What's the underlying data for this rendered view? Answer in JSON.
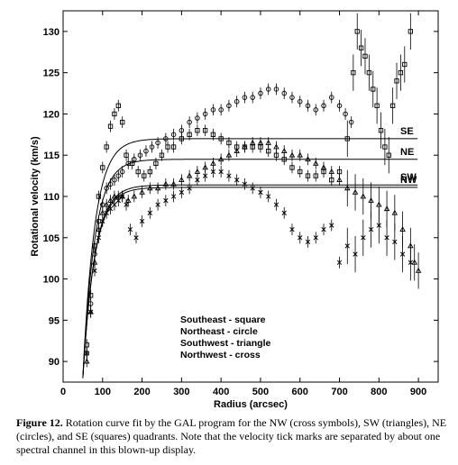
{
  "chart_data": {
    "type": "scatter",
    "xlabel": "Radius (arcsec)",
    "ylabel": "Rotational velocity (km/s)",
    "xlim": [
      0,
      950
    ],
    "ylim": [
      87.5,
      132.5
    ],
    "xticks": [
      0,
      100,
      200,
      300,
      400,
      500,
      600,
      700,
      800,
      900
    ],
    "yticks": [
      90,
      95,
      100,
      105,
      110,
      115,
      120,
      125,
      130
    ],
    "grid": false,
    "legend_position": "center-left",
    "legend_lines": [
      "Southeast - square",
      "Northeast - circle",
      "Southwest - triangle",
      "Northwest - cross"
    ],
    "fit_curves": [
      {
        "label": "SE",
        "vmax": 117.0
      },
      {
        "label": "NE",
        "vmax": 114.5
      },
      {
        "label": "SW",
        "vmax": 111.4
      },
      {
        "label": "NW",
        "vmax": 111.1
      }
    ],
    "series": [
      {
        "name": "Southeast - square",
        "marker": "square",
        "x": [
          60,
          70,
          80,
          90,
          100,
          110,
          120,
          130,
          140,
          150,
          160,
          175,
          190,
          205,
          220,
          235,
          250,
          265,
          280,
          300,
          320,
          340,
          360,
          380,
          400,
          420,
          440,
          460,
          480,
          500,
          520,
          540,
          560,
          580,
          600,
          620,
          640,
          660,
          680,
          700,
          720,
          735,
          745,
          755,
          765,
          775,
          785,
          795,
          805,
          815,
          825,
          835,
          845,
          855,
          865,
          880
        ],
        "y": [
          92,
          98,
          104,
          110,
          113.5,
          116,
          118.5,
          120,
          121,
          119,
          115,
          114,
          113,
          112.5,
          113,
          114,
          115,
          116,
          116,
          117,
          117.5,
          118,
          118,
          117.5,
          117,
          116.5,
          116,
          116,
          116,
          116,
          115.5,
          115,
          114.5,
          113.5,
          113,
          112.5,
          112.5,
          113,
          112,
          113,
          117,
          125,
          130,
          128,
          127,
          125,
          123,
          121,
          118,
          116,
          115,
          121,
          124,
          125,
          126,
          130
        ]
      },
      {
        "name": "Northeast - circle",
        "marker": "circle",
        "x": [
          60,
          70,
          80,
          90,
          100,
          110,
          120,
          130,
          140,
          150,
          165,
          180,
          195,
          210,
          225,
          240,
          260,
          280,
          300,
          320,
          340,
          360,
          380,
          400,
          420,
          440,
          460,
          480,
          500,
          520,
          540,
          560,
          580,
          600,
          620,
          640,
          660,
          680,
          700,
          715,
          730
        ],
        "y": [
          91,
          97,
          103,
          107,
          109,
          111,
          111.5,
          112,
          112.5,
          113,
          114,
          114.5,
          115,
          115.5,
          116,
          116.5,
          117,
          117.5,
          118,
          119,
          119.5,
          120,
          120.5,
          120.5,
          121,
          121.5,
          122,
          122,
          122.5,
          123,
          123,
          122.5,
          122,
          121.5,
          121,
          120.5,
          121,
          122,
          121,
          120,
          119
        ]
      },
      {
        "name": "Southwest - triangle",
        "marker": "triangle",
        "x": [
          60,
          70,
          80,
          90,
          100,
          110,
          120,
          130,
          140,
          150,
          165,
          180,
          200,
          220,
          240,
          260,
          280,
          300,
          320,
          340,
          360,
          380,
          400,
          420,
          440,
          460,
          480,
          500,
          520,
          540,
          560,
          580,
          600,
          620,
          640,
          660,
          680,
          700,
          720,
          740,
          760,
          780,
          800,
          820,
          840,
          860,
          880,
          890,
          900
        ],
        "y": [
          90,
          96,
          102,
          106,
          108,
          109,
          109.5,
          110,
          110,
          110,
          109.5,
          110,
          110.5,
          111,
          111,
          111.5,
          111.5,
          112,
          112.5,
          113,
          113.5,
          114,
          114.5,
          115,
          115.5,
          116,
          116.5,
          116.5,
          116.5,
          116,
          115.5,
          115,
          115,
          114.5,
          114,
          113.5,
          113,
          112,
          111,
          110.5,
          110,
          109.5,
          109,
          108.5,
          108,
          106,
          104,
          102,
          101
        ]
      },
      {
        "name": "Northwest - cross",
        "marker": "cross",
        "x": [
          60,
          70,
          80,
          90,
          100,
          110,
          120,
          130,
          140,
          150,
          160,
          170,
          185,
          200,
          220,
          240,
          260,
          280,
          300,
          320,
          340,
          360,
          380,
          400,
          420,
          440,
          460,
          480,
          500,
          520,
          540,
          560,
          580,
          600,
          620,
          640,
          660,
          680,
          700,
          720,
          740,
          760,
          780,
          800,
          820,
          840,
          860,
          880
        ],
        "y": [
          91,
          96,
          101,
          105,
          107,
          108,
          108.5,
          109,
          109.5,
          110,
          109,
          106,
          105,
          107,
          108,
          109,
          109.5,
          110,
          110.5,
          111,
          112,
          112.5,
          113,
          113,
          112.5,
          112,
          111.5,
          111,
          110.5,
          110,
          109,
          108,
          106,
          105,
          104.5,
          105,
          106,
          106.5,
          102,
          104,
          103,
          105,
          106,
          106.5,
          105,
          104.5,
          103,
          102
        ]
      }
    ]
  },
  "caption": {
    "label": "Figure 12.",
    "text": "Rotation curve fit by the GAL program for the NW (cross symbols), SW (triangles), NE (circles), and SE (squares) quadrants. Note that the velocity tick marks are separated by about one spectral channel in this blown-up display."
  }
}
